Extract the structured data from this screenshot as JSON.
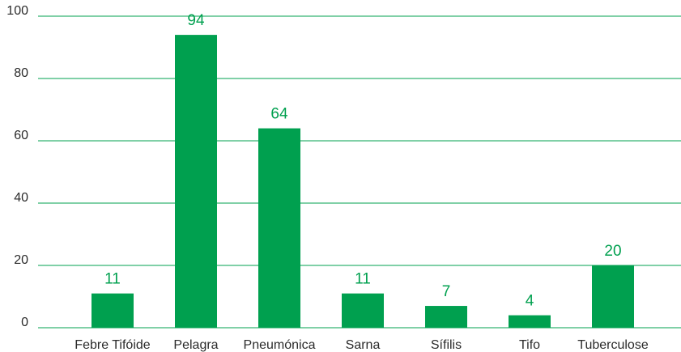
{
  "chart_data": {
    "type": "bar",
    "categories": [
      "Febre Tifóide",
      "Pelagra",
      "Pneumónica",
      "Sarna",
      "Sífilis",
      "Tifo",
      "Tuberculose"
    ],
    "values": [
      11,
      94,
      64,
      11,
      7,
      4,
      20
    ],
    "color": "#00a04f",
    "ylim": [
      0,
      100
    ],
    "yticks": [
      0,
      20,
      40,
      60,
      80,
      100
    ],
    "grid": true
  }
}
